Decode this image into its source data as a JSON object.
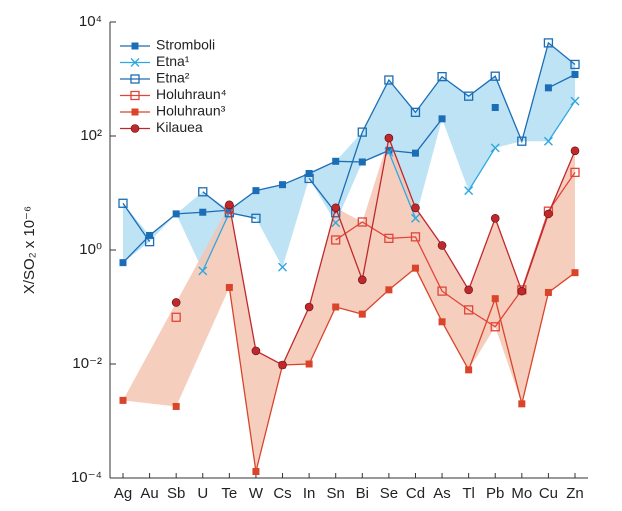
{
  "chart_data": {
    "type": "line",
    "y_label": "X/SO₂ x 10⁻⁶",
    "yscale": "log",
    "categories": [
      "Ag",
      "Au",
      "Sb",
      "U",
      "Te",
      "W",
      "Cs",
      "In",
      "Sn",
      "Bi",
      "Se",
      "Cd",
      "As",
      "Tl",
      "Pb",
      "Mo",
      "Cu",
      "Zn"
    ],
    "ylim": [
      0.0001,
      10000
    ],
    "yticks": [
      {
        "value": 0.0001,
        "label": "10⁻⁴"
      },
      {
        "value": 0.01,
        "label": "10⁻²"
      },
      {
        "value": 1,
        "label": "10⁰"
      },
      {
        "value": 100,
        "label": "10²"
      },
      {
        "value": 10000,
        "label": "10⁴"
      }
    ],
    "legend": "upper left",
    "series": [
      {
        "name": "Stromboli",
        "color": "#1b6db5",
        "marker": "square-filled",
        "band": "#b3def3",
        "values": [
          0.6,
          1.8,
          4.3,
          4.6,
          5,
          11,
          14,
          22,
          36,
          35,
          56,
          50,
          200,
          null,
          316,
          null,
          700,
          1200
        ]
      },
      {
        "name": "Etna¹",
        "color": "#2fa8e0",
        "marker": "x",
        "band": "#b3def3",
        "values": [
          null,
          null,
          null,
          0.43,
          4.5,
          null,
          0.5,
          null,
          3,
          null,
          52,
          3.6,
          null,
          11,
          62,
          null,
          81,
          410
        ]
      },
      {
        "name": "Etna²",
        "color": "#1b6db5",
        "marker": "square-open",
        "band": "#b3def3",
        "values": [
          6.6,
          1.4,
          null,
          10.5,
          4.5,
          3.6,
          null,
          18,
          4.5,
          117,
          960,
          260,
          1100,
          500,
          1120,
          81,
          4300,
          1800
        ]
      },
      {
        "name": "Holuhraun⁴",
        "color": "#e0453a",
        "marker": "square-open",
        "band": "#f5c5b3",
        "values": [
          null,
          null,
          0.066,
          null,
          5.2,
          null,
          null,
          null,
          1.5,
          3.1,
          1.6,
          1.7,
          0.19,
          0.089,
          0.045,
          0.2,
          4.8,
          23
        ]
      },
      {
        "name": "Holuhraun³",
        "color": "#d9442a",
        "marker": "square-filled",
        "band": "#f5c5b3",
        "values": [
          0.0023,
          null,
          0.0018,
          null,
          0.22,
          0.00013,
          0.0096,
          0.01,
          0.1,
          0.075,
          0.2,
          0.48,
          0.055,
          0.0079,
          0.14,
          0.002,
          0.18,
          0.4
        ]
      },
      {
        "name": "Kilauea",
        "color": "#c0282d",
        "marker": "circle-filled",
        "band": "#f5c5b3",
        "values": [
          null,
          null,
          0.12,
          null,
          6.2,
          0.017,
          0.0096,
          0.1,
          5.5,
          0.3,
          92,
          5.5,
          1.2,
          0.2,
          3.6,
          0.19,
          4.3,
          55
        ]
      }
    ]
  }
}
